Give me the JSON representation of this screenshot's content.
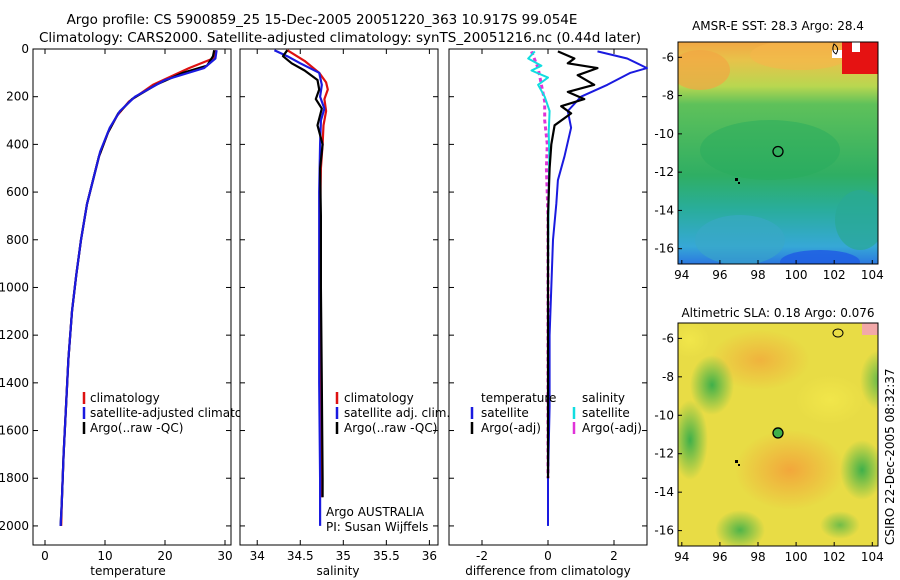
{
  "title": {
    "line1": "Argo profile: CS 5900859_25 15-Dec-2005 20051220_363 10.917S 99.054E",
    "line2": "Climatology: CARS2000. Satellite-adjusted climatology: synTS_20051216.nc (0.44d later)"
  },
  "side_label": "CSIRO 22-Dec-2005 08:32:37",
  "colors": {
    "red": "#dd1111",
    "blue": "#1a1adf",
    "black": "#000000",
    "cyan": "#11dde0",
    "magenta": "#e033d8"
  },
  "chart_data": [
    {
      "type": "line",
      "id": "temperature",
      "xlabel": "temperature",
      "xlim": [
        -2,
        31
      ],
      "ylim": [
        2080,
        0
      ],
      "xticks": [
        "0",
        "10",
        "20",
        "30"
      ],
      "xtick_values": [
        0,
        10,
        20,
        30
      ],
      "yticks": [
        "0",
        "200",
        "400",
        "600",
        "800",
        "1000",
        "1200",
        "1400",
        "1600",
        "1800",
        "2000"
      ],
      "ytick_values": [
        0,
        200,
        400,
        600,
        800,
        1000,
        1200,
        1400,
        1600,
        1800,
        2000
      ],
      "legend": [
        "climatology",
        "satellite-adjusted climatology",
        "Argo(..raw -QC)"
      ],
      "series": [
        {
          "name": "climatology",
          "color": "red",
          "width": 2.2,
          "points": [
            [
              28.5,
              5
            ],
            [
              28,
              40
            ],
            [
              24,
              80
            ],
            [
              18,
              150
            ],
            [
              14,
              220
            ],
            [
              12,
              280
            ],
            [
              10.5,
              350
            ],
            [
              9,
              450
            ],
            [
              8,
              550
            ],
            [
              7,
              650
            ],
            [
              6,
              800
            ],
            [
              5.2,
              950
            ],
            [
              4.5,
              1100
            ],
            [
              3.9,
              1300
            ],
            [
              3.5,
              1500
            ],
            [
              3.1,
              1700
            ],
            [
              2.8,
              1900
            ],
            [
              2.7,
              2000
            ]
          ]
        },
        {
          "name": "Argo(..raw -QC)",
          "color": "black",
          "width": 2.2,
          "points": [
            [
              28.2,
              5
            ],
            [
              28,
              30
            ],
            [
              27,
              70
            ],
            [
              23,
              100
            ],
            [
              18.5,
              150
            ],
            [
              14.5,
              210
            ],
            [
              12.2,
              270
            ],
            [
              10.5,
              350
            ],
            [
              9,
              450
            ],
            [
              8,
              550
            ],
            [
              7,
              650
            ],
            [
              6,
              800
            ],
            [
              5.2,
              950
            ],
            [
              4.5,
              1100
            ],
            [
              3.9,
              1300
            ],
            [
              3.5,
              1500
            ],
            [
              3.1,
              1700
            ],
            [
              2.8,
              1900
            ],
            [
              2.6,
              2000
            ]
          ]
        },
        {
          "name": "satellite-adjusted climatology",
          "color": "blue",
          "width": 2.2,
          "points": [
            [
              28.6,
              5
            ],
            [
              28.4,
              40
            ],
            [
              26.5,
              80
            ],
            [
              20,
              130
            ],
            [
              15,
              200
            ],
            [
              12.5,
              260
            ],
            [
              10.8,
              330
            ],
            [
              9.2,
              430
            ],
            [
              8,
              550
            ],
            [
              7,
              650
            ],
            [
              6,
              800
            ],
            [
              5.2,
              950
            ],
            [
              4.5,
              1100
            ],
            [
              3.9,
              1300
            ],
            [
              3.5,
              1500
            ],
            [
              3.1,
              1700
            ],
            [
              2.8,
              1900
            ],
            [
              2.6,
              2000
            ]
          ]
        }
      ]
    },
    {
      "type": "line",
      "id": "salinity",
      "xlabel": "salinity",
      "xlim": [
        33.8,
        36.1
      ],
      "ylim": [
        2080,
        0
      ],
      "xticks": [
        "34",
        "34.5",
        "35",
        "35.5",
        "36"
      ],
      "xtick_values": [
        34,
        34.5,
        35,
        35.5,
        36
      ],
      "legend": [
        "climatology",
        "satellite adj. clim.",
        "Argo(..raw -QC)"
      ],
      "annotation": [
        "Argo AUSTRALIA",
        "PI: Susan Wijffels"
      ],
      "series": [
        {
          "name": "climatology",
          "color": "red",
          "width": 2.2,
          "points": [
            [
              34.35,
              5
            ],
            [
              34.55,
              50
            ],
            [
              34.72,
              100
            ],
            [
              34.8,
              140
            ],
            [
              34.82,
              170
            ],
            [
              34.78,
              210
            ],
            [
              34.8,
              260
            ],
            [
              34.77,
              320
            ],
            [
              34.76,
              400
            ],
            [
              34.74,
              500
            ],
            [
              34.73,
              700
            ],
            [
              34.73,
              1000
            ],
            [
              34.74,
              1400
            ],
            [
              34.75,
              1800
            ],
            [
              34.75,
              1880
            ]
          ]
        },
        {
          "name": "satellite adj. clim.",
          "color": "blue",
          "width": 2.2,
          "points": [
            [
              34.2,
              5
            ],
            [
              34.35,
              30
            ],
            [
              34.5,
              60
            ],
            [
              34.72,
              100
            ],
            [
              34.75,
              150
            ],
            [
              34.73,
              200
            ],
            [
              34.78,
              250
            ],
            [
              34.74,
              300
            ],
            [
              34.73,
              400
            ],
            [
              34.72,
              600
            ],
            [
              34.72,
              1000
            ],
            [
              34.72,
              1400
            ],
            [
              34.73,
              1800
            ],
            [
              34.73,
              2000
            ]
          ]
        },
        {
          "name": "Argo(..raw -QC)",
          "color": "black",
          "width": 2.2,
          "points": [
            [
              34.35,
              5
            ],
            [
              34.3,
              30
            ],
            [
              34.4,
              60
            ],
            [
              34.55,
              90
            ],
            [
              34.7,
              130
            ],
            [
              34.72,
              170
            ],
            [
              34.68,
              210
            ],
            [
              34.75,
              250
            ],
            [
              34.7,
              320
            ],
            [
              34.76,
              400
            ],
            [
              34.73,
              500
            ],
            [
              34.74,
              700
            ],
            [
              34.74,
              1000
            ],
            [
              34.75,
              1400
            ],
            [
              34.76,
              1800
            ],
            [
              34.76,
              1880
            ]
          ]
        }
      ]
    },
    {
      "type": "line",
      "id": "difference",
      "xlabel": "difference from climatology",
      "xlim": [
        -3,
        3
      ],
      "ylim": [
        2080,
        0
      ],
      "xticks": [
        "-2",
        "0",
        "2"
      ],
      "xtick_values": [
        -2,
        0,
        2
      ],
      "legend_temperature": [
        "temperature",
        "satellite",
        "Argo(-adj)"
      ],
      "legend_salinity": [
        "salinity",
        "satellite",
        "Argo(-adj)"
      ],
      "series": [
        {
          "name": "Argo(-adj) salinity",
          "color": "magenta",
          "width": 3,
          "dash": "4,3",
          "points": [
            [
              -0.5,
              10
            ],
            [
              -0.3,
              80
            ],
            [
              -0.2,
              150
            ],
            [
              -0.1,
              220
            ],
            [
              -0.1,
              300
            ],
            [
              -0.02,
              400
            ],
            [
              -0.05,
              500
            ],
            [
              0,
              700
            ],
            [
              0,
              1000
            ],
            [
              0,
              1400
            ],
            [
              0,
              1800
            ]
          ]
        },
        {
          "name": "satellite salinity",
          "color": "cyan",
          "width": 2,
          "points": [
            [
              -0.4,
              10
            ],
            [
              -0.6,
              40
            ],
            [
              -0.2,
              70
            ],
            [
              -0.5,
              90
            ],
            [
              0,
              120
            ],
            [
              -0.3,
              150
            ],
            [
              -0.1,
              200
            ],
            [
              0.05,
              260
            ],
            [
              0.02,
              350
            ],
            [
              0.04,
              450
            ],
            [
              0.02,
              600
            ],
            [
              0.01,
              800
            ],
            [
              0,
              1000
            ],
            [
              0,
              1400
            ],
            [
              0,
              1800
            ],
            [
              0,
              2000
            ]
          ]
        },
        {
          "name": "satellite temperature",
          "color": "blue",
          "width": 2,
          "points": [
            [
              1.5,
              10
            ],
            [
              2.4,
              40
            ],
            [
              3,
              80
            ],
            [
              2.5,
              100
            ],
            [
              1.8,
              150
            ],
            [
              1,
              200
            ],
            [
              0.6,
              260
            ],
            [
              0.7,
              330
            ],
            [
              0.5,
              450
            ],
            [
              0.3,
              550
            ],
            [
              0.25,
              650
            ],
            [
              0.15,
              800
            ],
            [
              0.1,
              1000
            ],
            [
              0.05,
              1200
            ],
            [
              0.05,
              1500
            ],
            [
              0,
              1800
            ],
            [
              0,
              2000
            ]
          ]
        },
        {
          "name": "Argo(-adj) temperature",
          "color": "black",
          "width": 2.2,
          "points": [
            [
              0.3,
              10
            ],
            [
              0.8,
              40
            ],
            [
              0.6,
              60
            ],
            [
              1.5,
              80
            ],
            [
              0.9,
              110
            ],
            [
              1.4,
              150
            ],
            [
              0.6,
              180
            ],
            [
              1.1,
              210
            ],
            [
              0.4,
              240
            ],
            [
              0.7,
              270
            ],
            [
              0.2,
              320
            ],
            [
              0.1,
              400
            ],
            [
              0.05,
              500
            ],
            [
              0,
              700
            ],
            [
              0,
              1000
            ],
            [
              0,
              1400
            ],
            [
              0,
              1800
            ]
          ]
        }
      ]
    },
    {
      "type": "heatmap",
      "id": "sst-map",
      "title": "AMSR-E SST: 28.3  Argo: 28.4",
      "xlim": [
        93.8,
        104.3
      ],
      "ylim": [
        -16.8,
        -5.2
      ],
      "xticks": [
        "94",
        "96",
        "98",
        "100",
        "102",
        "104"
      ],
      "xtick_values": [
        94,
        96,
        98,
        100,
        102,
        104
      ],
      "yticks": [
        "-6",
        "-8",
        "-10",
        "-12",
        "-14",
        "-16"
      ],
      "ytick_values": [
        -6,
        -8,
        -10,
        -12,
        -14,
        -16
      ],
      "marker": [
        99.05,
        -10.92
      ]
    },
    {
      "type": "heatmap",
      "id": "sla-map",
      "title": "Altimetric SLA: 0.18  Argo: 0.076",
      "xlim": [
        93.8,
        104.3
      ],
      "ylim": [
        -16.8,
        -5.2
      ],
      "xticks": [
        "94",
        "96",
        "98",
        "100",
        "102",
        "104"
      ],
      "xtick_values": [
        94,
        96,
        98,
        100,
        102,
        104
      ],
      "yticks": [
        "-6",
        "-8",
        "-10",
        "-12",
        "-14",
        "-16"
      ],
      "ytick_values": [
        -6,
        -8,
        -10,
        -12,
        -14,
        -16
      ],
      "marker": [
        99.05,
        -10.92
      ]
    }
  ]
}
